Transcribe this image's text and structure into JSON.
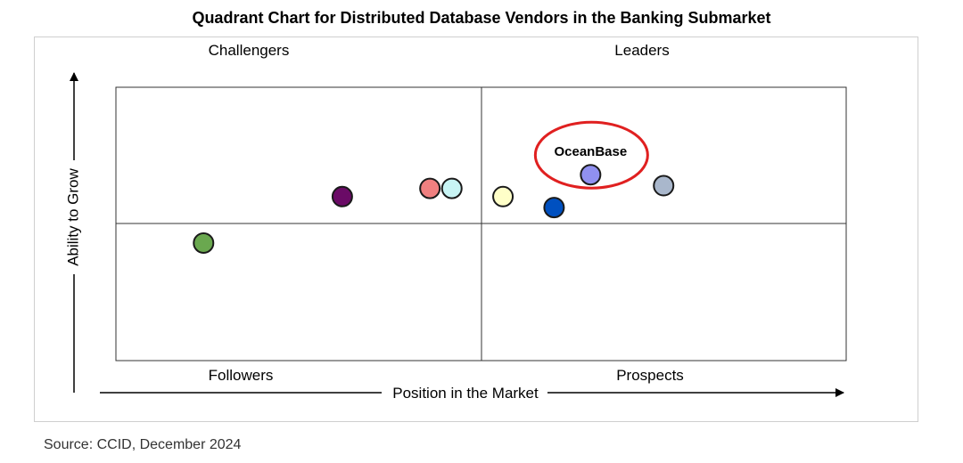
{
  "chart_data": {
    "type": "scatter",
    "title": "Quadrant Chart for Distributed Database Vendors in the Banking Submarket",
    "xlabel": "Position in the Market",
    "ylabel": "Ability to Grow",
    "xlim": [
      0,
      10
    ],
    "ylim": [
      0,
      10
    ],
    "quadrants": {
      "top_left": "Challengers",
      "top_right": "Leaders",
      "bottom_left": "Followers",
      "bottom_right": "Prospects"
    },
    "points": [
      {
        "x": 6.5,
        "y": 6.8,
        "color": "#9090f0",
        "label": "OceanBase",
        "highlighted": true
      },
      {
        "x": 7.5,
        "y": 6.4,
        "color": "#a9b7cc"
      },
      {
        "x": 6.0,
        "y": 5.6,
        "color": "#0050c0"
      },
      {
        "x": 5.3,
        "y": 6.0,
        "color": "#ffffc8"
      },
      {
        "x": 4.6,
        "y": 6.3,
        "color": "#c8f4f4"
      },
      {
        "x": 4.3,
        "y": 6.3,
        "color": "#f08080"
      },
      {
        "x": 3.1,
        "y": 6.0,
        "color": "#6a0a66"
      },
      {
        "x": 1.2,
        "y": 4.3,
        "color": "#6aa84f"
      }
    ],
    "highlight_color": "#e02020"
  },
  "source": "Source: CCID, December 2024"
}
